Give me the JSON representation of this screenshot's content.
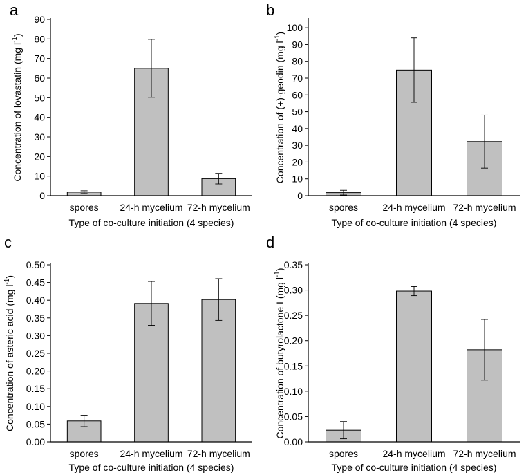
{
  "chart_data": [
    {
      "type": "bar",
      "panel_label": "a",
      "title": "",
      "xlabel": "Type of co-culture initiation (4 species)",
      "ylabel_main": "Concentration of lovastatin (mg l",
      "ylabel_sup": "-1",
      "ylabel_close": ")",
      "categories": [
        "spores",
        "24-h mycelium",
        "72-h mycelium"
      ],
      "values": [
        1.8,
        65,
        8.7
      ],
      "errors": [
        0.7,
        14.8,
        2.7
      ],
      "ylim": [
        0,
        90
      ],
      "yticks": [
        0,
        10,
        20,
        30,
        40,
        50,
        60,
        70,
        80,
        90
      ],
      "ytick_labels": [
        "0",
        "10",
        "20",
        "30",
        "40",
        "50",
        "60",
        "70",
        "80",
        "90"
      ],
      "bar_color": "#c0c0c0",
      "grid": false
    },
    {
      "type": "bar",
      "panel_label": "b",
      "title": "",
      "xlabel": "Type of co-culture initiation (4 species)",
      "ylabel_main": "Concentration of (+)-geodin (mg l",
      "ylabel_sup": "-1",
      "ylabel_close": ")",
      "categories": [
        "spores",
        "24-h mycelium",
        "72-h mycelium"
      ],
      "values": [
        1.8,
        74.8,
        32.2
      ],
      "errors": [
        1.4,
        19.2,
        15.8
      ],
      "ylim": [
        0,
        105
      ],
      "yticks": [
        0,
        10,
        20,
        30,
        40,
        50,
        60,
        70,
        80,
        90,
        100
      ],
      "ytick_labels": [
        "0",
        "10",
        "20",
        "30",
        "40",
        "50",
        "60",
        "70",
        "80",
        "90",
        "100"
      ],
      "bar_color": "#c0c0c0",
      "grid": false
    },
    {
      "type": "bar",
      "panel_label": "c",
      "title": "",
      "xlabel": "Type of co-culture initiation (4 species)",
      "ylabel_main": "Concentration of asteric acid (mg l",
      "ylabel_sup": "-1",
      "ylabel_close": ")",
      "categories": [
        "spores",
        "24-h mycelium",
        "72-h mycelium"
      ],
      "values": [
        0.059,
        0.391,
        0.402
      ],
      "errors": [
        0.016,
        0.062,
        0.059
      ],
      "ylim": [
        0,
        0.5
      ],
      "yticks": [
        0,
        0.05,
        0.1,
        0.15,
        0.2,
        0.25,
        0.3,
        0.35,
        0.4,
        0.45,
        0.5
      ],
      "ytick_labels": [
        "0.00",
        "0.05",
        "0.10",
        "0.15",
        "0.20",
        "0.25",
        "0.30",
        "0.35",
        "0.40",
        "0.45",
        "0.50"
      ],
      "bar_color": "#c0c0c0",
      "grid": false
    },
    {
      "type": "bar",
      "panel_label": "d",
      "title": "",
      "xlabel": "Type of co-culture initiation (4 species)",
      "ylabel_main": "Concentration of butyrolactone I (mg l",
      "ylabel_sup": "-1",
      "ylabel_close": ")",
      "categories": [
        "spores",
        "24-h mycelium",
        "72-h mycelium"
      ],
      "values": [
        0.023,
        0.298,
        0.182
      ],
      "errors": [
        0.017,
        0.009,
        0.06
      ],
      "ylim": [
        0,
        0.35
      ],
      "yticks": [
        0,
        0.05,
        0.1,
        0.15,
        0.2,
        0.25,
        0.3,
        0.35
      ],
      "ytick_labels": [
        "0.00",
        "0.05",
        "0.10",
        "0.15",
        "0.20",
        "0.25",
        "0.30",
        "0.35"
      ],
      "bar_color": "#c0c0c0",
      "grid": false
    }
  ]
}
